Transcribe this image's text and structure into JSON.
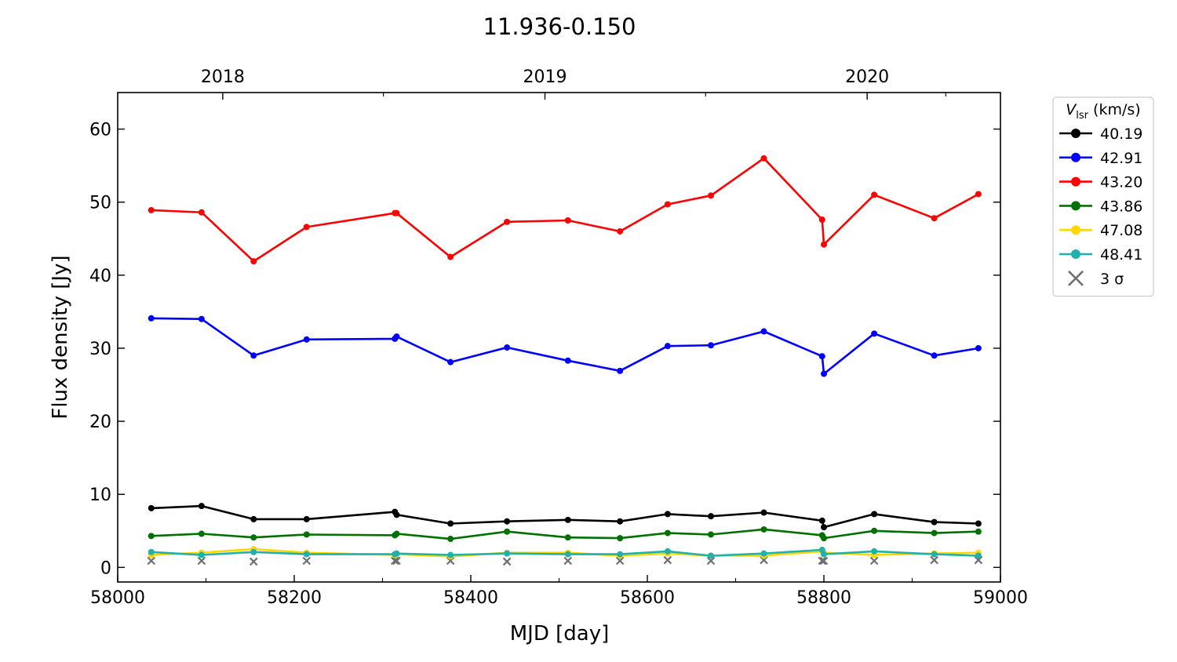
{
  "chart_data": {
    "type": "line",
    "title": "11.936-0.150",
    "xlabel": "MJD [day]",
    "ylabel": "Flux density [Jy]",
    "xlim": [
      58000,
      59000
    ],
    "ylim": [
      -2,
      65
    ],
    "x_ticks": [
      58000,
      58200,
      58400,
      58600,
      58800,
      59000
    ],
    "y_ticks": [
      0,
      10,
      20,
      30,
      40,
      50,
      60
    ],
    "top_axis": {
      "ticks": [
        {
          "label": "2018",
          "mjd": 58119
        },
        {
          "label": "2019",
          "mjd": 58484
        },
        {
          "label": "2020",
          "mjd": 58849
        }
      ]
    },
    "legend": {
      "title": "V",
      "title_subscript": "lsr",
      "title_unit": " (km/s)",
      "placement": "upper-right-outside"
    },
    "x": [
      58038,
      58095,
      58154,
      58214,
      58314,
      58316,
      58377,
      58441,
      58510,
      58569,
      58623,
      58672,
      58732,
      58798,
      58800,
      58857,
      58925,
      58975
    ],
    "series": [
      {
        "name": "40.19",
        "color": "#000000",
        "values": [
          8.1,
          8.4,
          6.6,
          6.6,
          7.6,
          7.2,
          6.0,
          6.3,
          6.5,
          6.3,
          7.3,
          7.0,
          7.5,
          6.4,
          5.5,
          7.3,
          6.2,
          6.0
        ]
      },
      {
        "name": "42.91",
        "color": "#0000ff",
        "values": [
          34.1,
          34.0,
          29.0,
          31.2,
          31.3,
          31.6,
          28.1,
          30.1,
          28.3,
          26.9,
          30.3,
          30.4,
          32.3,
          28.9,
          26.5,
          32.0,
          29.0,
          30.0
        ]
      },
      {
        "name": "43.20",
        "color": "#ff0000",
        "values": [
          48.9,
          48.6,
          41.9,
          46.6,
          48.5,
          48.5,
          42.5,
          47.3,
          47.5,
          46.0,
          49.7,
          50.9,
          56.0,
          47.6,
          44.2,
          51.0,
          47.8,
          51.1
        ]
      },
      {
        "name": "43.86",
        "color": "#007000",
        "values": [
          4.3,
          4.6,
          4.1,
          4.5,
          4.4,
          4.6,
          3.9,
          4.9,
          4.1,
          4.0,
          4.7,
          4.5,
          5.2,
          4.4,
          4.0,
          5.0,
          4.7,
          4.9
        ]
      },
      {
        "name": "47.08",
        "color": "#ffd700",
        "values": [
          1.7,
          2.0,
          2.5,
          2.0,
          1.7,
          1.8,
          1.5,
          2.0,
          2.0,
          1.6,
          1.9,
          1.6,
          1.6,
          2.2,
          2.0,
          1.7,
          1.9,
          2.0
        ]
      },
      {
        "name": "48.41",
        "color": "#20b2aa",
        "values": [
          2.1,
          1.7,
          2.1,
          1.8,
          1.8,
          1.9,
          1.7,
          1.9,
          1.8,
          1.8,
          2.2,
          1.6,
          1.9,
          2.4,
          1.8,
          2.2,
          1.8,
          1.6
        ]
      }
    ],
    "sigma": {
      "name": "3 σ",
      "color": "#707070",
      "values": [
        0.9,
        0.9,
        0.8,
        0.9,
        0.9,
        0.9,
        0.9,
        0.8,
        0.9,
        0.9,
        1.0,
        0.9,
        1.0,
        0.9,
        0.9,
        0.9,
        1.0,
        1.0
      ]
    }
  }
}
